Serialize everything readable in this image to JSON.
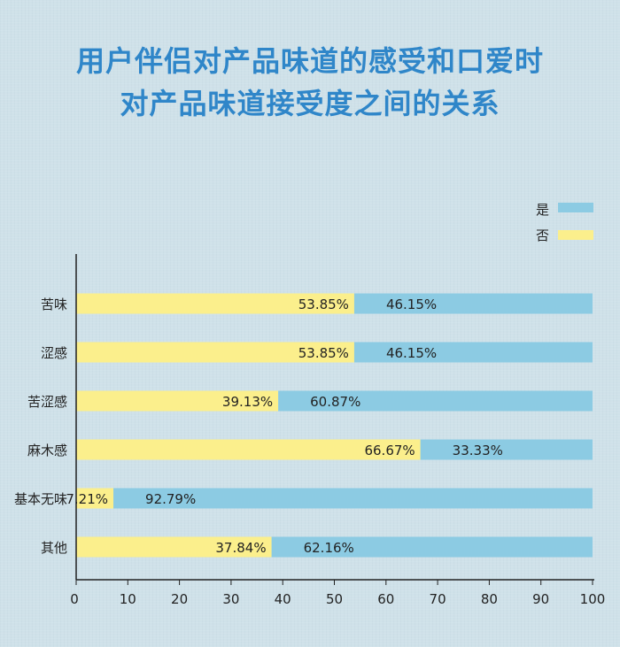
{
  "title_lines": [
    "用户伴侣对产品味道的感受和口爱时",
    "对产品味道接受度之间的关系"
  ],
  "colors": {
    "yes": "#8ccbe3",
    "no": "#fbef8c",
    "title": "#2f86c9",
    "axis": "#222222",
    "text": "#222222"
  },
  "chart_data": {
    "type": "bar",
    "orientation": "horizontal",
    "stacked": true,
    "categories": [
      "苦味",
      "涩感",
      "苦涩感",
      "麻木感",
      "基本无味",
      "其他"
    ],
    "series": [
      {
        "name": "否",
        "values": [
          53.85,
          53.85,
          39.13,
          66.67,
          7.21,
          37.84
        ],
        "labels": [
          "53.85%",
          "53.85%",
          "39.13%",
          "66.67%",
          "7.21%",
          "37.84%"
        ],
        "color": "#fbef8c"
      },
      {
        "name": "是",
        "values": [
          46.15,
          46.15,
          60.87,
          33.33,
          92.79,
          62.16
        ],
        "labels": [
          "46.15%",
          "46.15%",
          "60.87%",
          "33.33%",
          "92.79%",
          "62.16%"
        ],
        "color": "#8ccbe3"
      }
    ],
    "xlim": [
      0,
      100
    ],
    "xticks": [
      0,
      10,
      20,
      30,
      40,
      50,
      60,
      70,
      80,
      90,
      100
    ],
    "grid": false,
    "legend_position": "top-right",
    "xlabel": "",
    "ylabel": ""
  }
}
